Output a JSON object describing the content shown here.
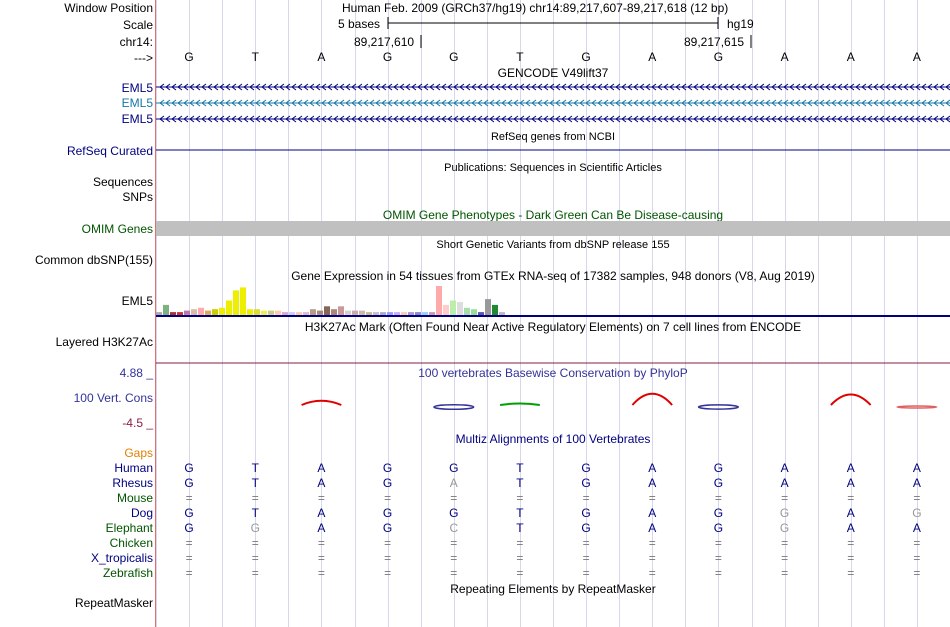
{
  "header": {
    "window_position_label": "Window Position",
    "position_text": "Human Feb. 2009 (GRCh37/hg19)   chr14:89,217,607-89,217,618 (12 bp)",
    "scale_label": "Scale",
    "scale_bases": "5 bases",
    "scale_assembly": "hg19",
    "chrom_label": "chr14:",
    "coord_left": "89,217,610",
    "coord_right": "89,217,615",
    "strand_label": "--->"
  },
  "bases": [
    "G",
    "T",
    "A",
    "G",
    "G",
    "T",
    "G",
    "A",
    "G",
    "A",
    "A",
    "A"
  ],
  "colors": {
    "navy": "#000080",
    "gencode_teal": "#1577a8",
    "omim_green": "#005500",
    "omim_gray": "#c0c0c0",
    "phylop_blue": "#333399",
    "phylop_red": "#e00000",
    "gaps_orange": "#e08000",
    "h3k_red": "#8b1e3f",
    "grid": "#d6d6ec"
  },
  "tracks": {
    "gencode": {
      "title": "GENCODE V49lift37",
      "rows": [
        {
          "label": "EML5",
          "color": "#000080"
        },
        {
          "label": "EML5",
          "color": "#1577a8"
        },
        {
          "label": "EML5",
          "color": "#000080"
        }
      ]
    },
    "refseq": {
      "title": "RefSeq genes from NCBI",
      "label": "RefSeq Curated"
    },
    "publications": {
      "title": "Publications: Sequences in Scientific Articles",
      "label1": "Sequences",
      "label2": "SNPs"
    },
    "omim": {
      "title": "OMIM Gene Phenotypes - Dark Green Can Be Disease-causing",
      "label": "OMIM Genes"
    },
    "dbsnp": {
      "title": "Short Genetic Variants from dbSNP release 155",
      "label": "Common dbSNP(155)"
    },
    "gtex": {
      "title": "Gene Expression in 54 tissues from GTEx RNA-seq of 17382 samples, 948 donors (V8, Aug 2019)",
      "label": "EML5"
    },
    "h3k27ac": {
      "title": "H3K27Ac Mark (Often Found Near Active Regulatory Elements) on 7 cell lines from ENCODE",
      "label": "Layered H3K27Ac"
    },
    "cons": {
      "title": "100 vertebrates Basewise Conservation by PhyloP",
      "label": "100 Vert. Cons",
      "max": "4.88 _",
      "min": "-4.5 _"
    },
    "multiz": {
      "title": "Multiz Alignments of 100 Vertebrates",
      "gaps_label": "Gaps",
      "species": [
        {
          "name": "Human",
          "color": "#000080",
          "bases": [
            "G",
            "T",
            "A",
            "G",
            "G",
            "T",
            "G",
            "A",
            "G",
            "A",
            "A",
            "A"
          ]
        },
        {
          "name": "Rhesus",
          "color": "#000080",
          "bases": [
            "G",
            "T",
            "A",
            "G",
            "A",
            "T",
            "G",
            "A",
            "G",
            "A",
            "A",
            "A"
          ]
        },
        {
          "name": "Mouse",
          "color": "#005500",
          "bases": [
            "=",
            "=",
            "=",
            "=",
            "=",
            "=",
            "=",
            "=",
            "=",
            "=",
            "=",
            "="
          ]
        },
        {
          "name": "Dog",
          "color": "#000080",
          "bases": [
            "G",
            "T",
            "A",
            "G",
            "G",
            "T",
            "G",
            "A",
            "G",
            "G",
            "A",
            "G"
          ]
        },
        {
          "name": "Elephant",
          "color": "#005500",
          "bases": [
            "G",
            "G",
            "A",
            "G",
            "C",
            "T",
            "G",
            "A",
            "G",
            "G",
            "A",
            "A"
          ]
        },
        {
          "name": "Chicken",
          "color": "#005500",
          "bases": [
            "=",
            "=",
            "=",
            "=",
            "=",
            "=",
            "=",
            "=",
            "=",
            "=",
            "=",
            "="
          ]
        },
        {
          "name": "X_tropicalis",
          "color": "#000080",
          "bases": [
            "=",
            "=",
            "=",
            "=",
            "=",
            "=",
            "=",
            "=",
            "=",
            "=",
            "=",
            "="
          ]
        },
        {
          "name": "Zebrafish",
          "color": "#005500",
          "bases": [
            "=",
            "=",
            "=",
            "=",
            "=",
            "=",
            "=",
            "=",
            "=",
            "=",
            "=",
            "="
          ]
        }
      ]
    },
    "repeatmasker": {
      "title": "Repeating Elements by RepeatMasker",
      "label": "RepeatMasker"
    }
  },
  "chart_data": {
    "type": "bar",
    "series": [
      {
        "values": [
          2,
          7,
          2,
          2,
          3,
          4,
          5,
          3,
          4,
          5,
          10,
          17,
          19,
          4,
          4,
          3,
          3,
          3,
          2,
          2,
          2,
          2,
          4,
          3,
          6,
          4,
          6,
          3,
          3,
          3,
          2,
          2,
          2,
          2,
          2,
          2,
          2,
          2,
          2,
          2,
          20,
          7,
          10,
          9,
          5,
          4,
          2,
          11,
          7,
          2
        ]
      }
    ],
    "colors": [
      "#aaaaaa",
      "#7fb07f",
      "#aa3333",
      "#cc3333",
      "#bb77aa",
      "#ddbbaa",
      "#ffaaaa",
      "#ddaa55",
      "#cccc00",
      "#eeee00",
      "#eeee00",
      "#eeee00",
      "#eeee00",
      "#eeee00",
      "#dddd33",
      "#eeee55",
      "#cccc88",
      "#ffccaa",
      "#ddaacc",
      "#ccccff",
      "#ffccaa",
      "#ddbbcc",
      "#bb9988",
      "#aa8877",
      "#886655",
      "#aa8877",
      "#cc9999",
      "#ddcccc",
      "#ccaaaa",
      "#ccbbaa",
      "#ccbb88",
      "#ccbbcc",
      "#aaaacc",
      "#9999ff",
      "#ccaaff",
      "#ffccaa",
      "#aa99cc",
      "#8888cc",
      "#99ccff",
      "#cc99aa",
      "#ffaaaa",
      "#ffcccc",
      "#bbeeaa",
      "#dddddd",
      "#aaddaa",
      "#99dd99",
      "#5555bb",
      "#999999",
      "#228833",
      "#bbbbbb"
    ]
  },
  "phylop": [
    {
      "pos": 2,
      "value": 1.2,
      "color": "#e00000"
    },
    {
      "pos": 4,
      "value": -1.0,
      "color": "#333399"
    },
    {
      "pos": 5,
      "value": 0.3,
      "color": "#00a000"
    },
    {
      "pos": 7,
      "value": 3.2,
      "color": "#e00000"
    },
    {
      "pos": 8,
      "value": -0.9,
      "color": "#333399"
    },
    {
      "pos": 10,
      "value": 3.0,
      "color": "#e00000"
    },
    {
      "pos": 11,
      "value": -0.2,
      "color": "#e06060"
    }
  ]
}
